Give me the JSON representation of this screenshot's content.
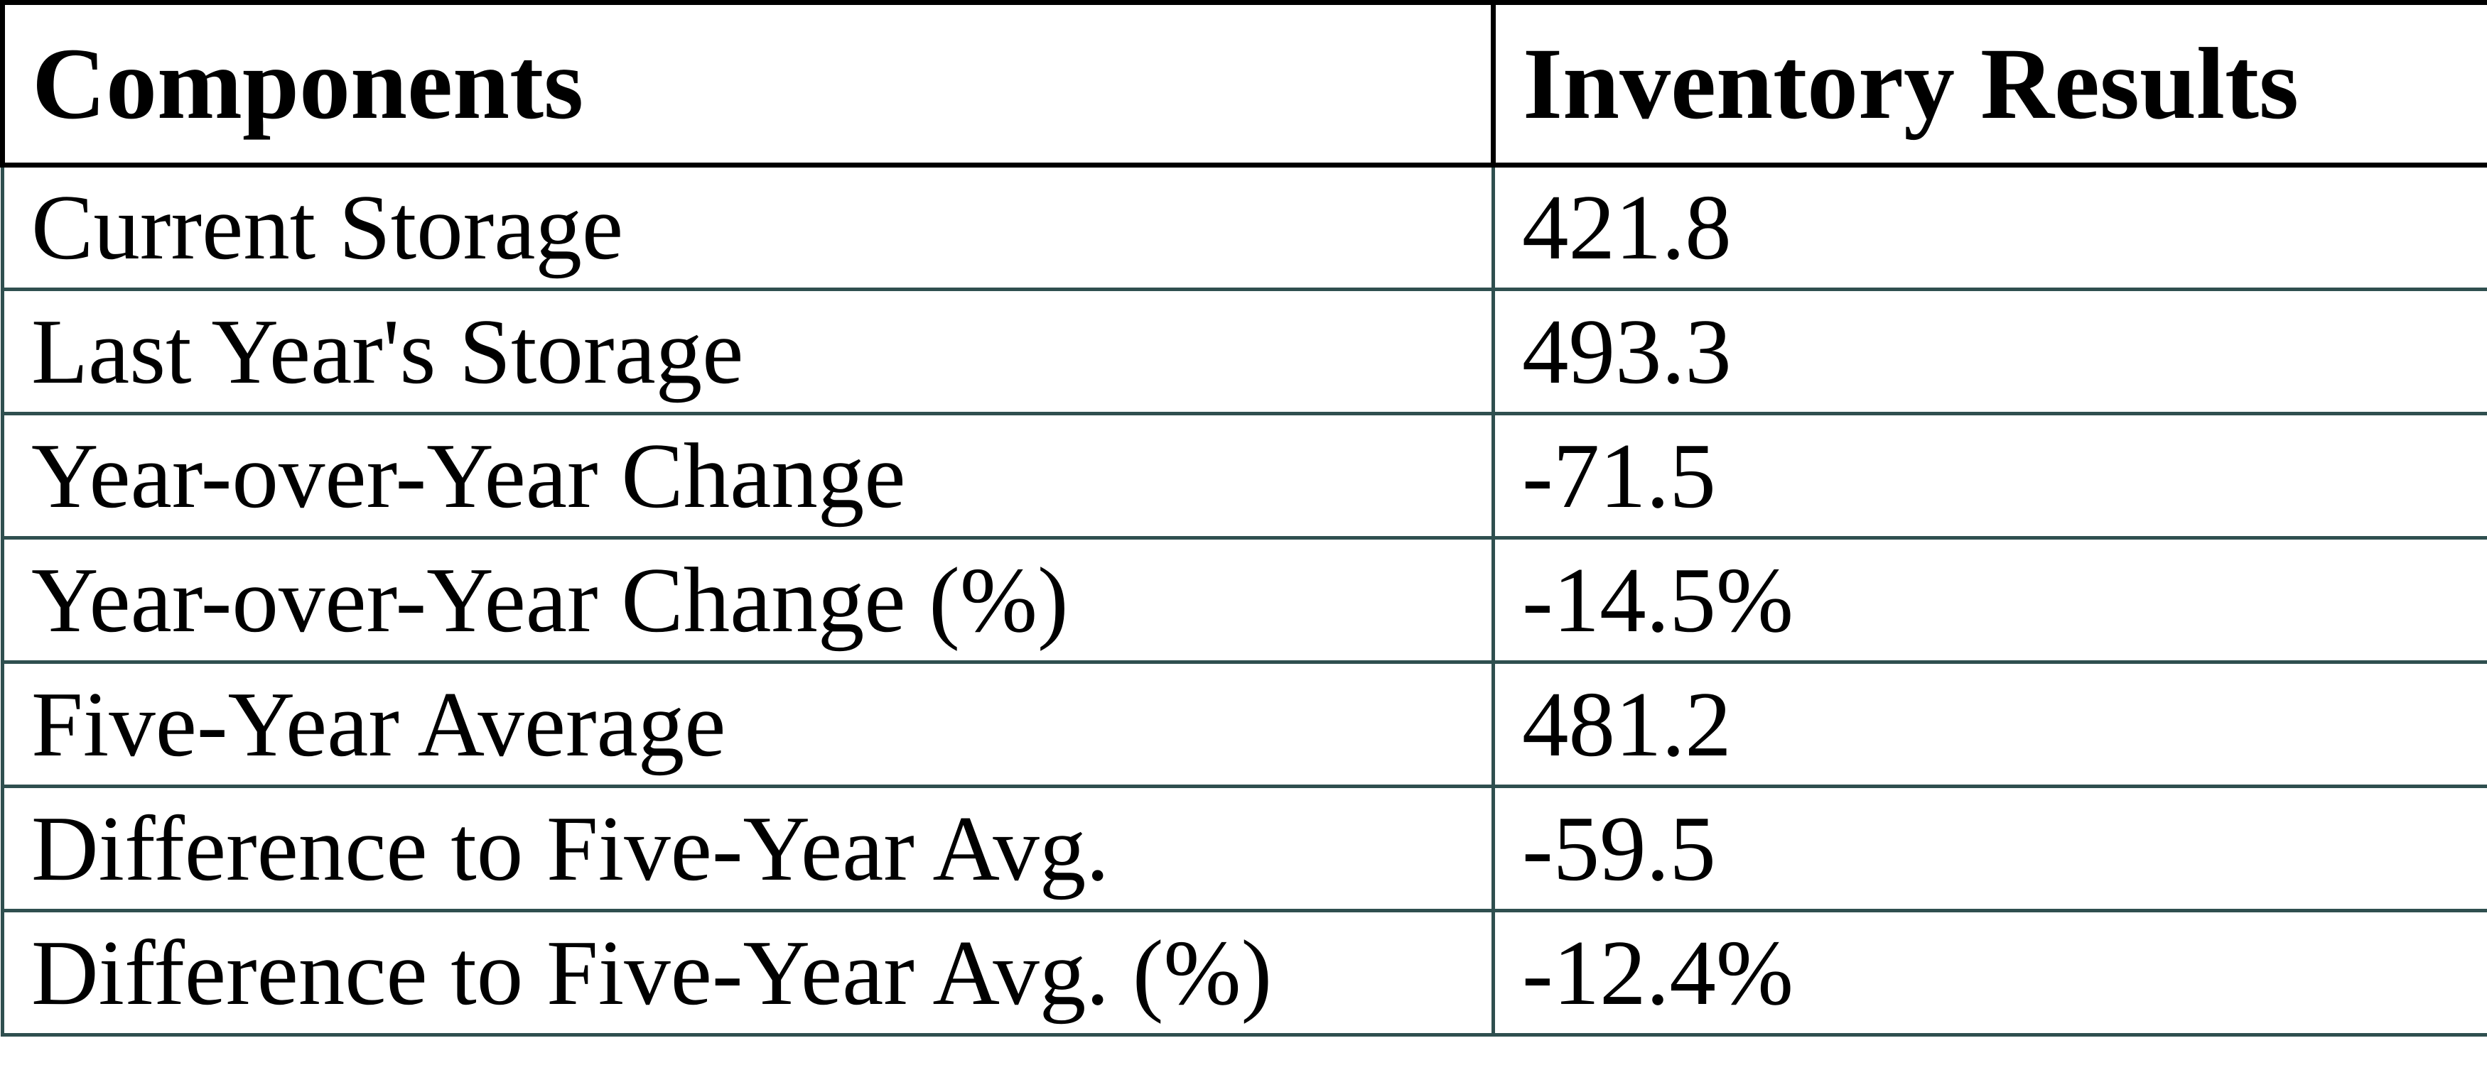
{
  "table": {
    "header": {
      "components": "Components",
      "inventory_results": "Inventory Results"
    },
    "rows": [
      {
        "label": "Current Storage",
        "value": "421.8"
      },
      {
        "label": "Last Year's Storage",
        "value": "493.3"
      },
      {
        "label": "Year-over-Year Change",
        "value": "-71.5"
      },
      {
        "label": "Year-over-Year Change (%)",
        "value": "-14.5%"
      },
      {
        "label": "Five-Year Average",
        "value": "481.2"
      },
      {
        "label": "Difference to Five-Year Avg.",
        "value": "-59.5"
      },
      {
        "label": "Difference to Five-Year Avg. (%)",
        "value": "-12.4%"
      }
    ],
    "colors": {
      "header_border": "#000000",
      "body_border": "#2f4f4f",
      "text": "#000000",
      "background": "#ffffff"
    }
  },
  "chart_data": {
    "type": "table",
    "columns": [
      "Components",
      "Inventory Results"
    ],
    "rows": [
      [
        "Current Storage",
        "421.8"
      ],
      [
        "Last Year's Storage",
        "493.3"
      ],
      [
        "Year-over-Year Change",
        "-71.5"
      ],
      [
        "Year-over-Year Change (%)",
        "-14.5%"
      ],
      [
        "Five-Year Average",
        "481.2"
      ],
      [
        "Difference to Five-Year Avg.",
        "-59.5"
      ],
      [
        "Difference to Five-Year Avg. (%)",
        "-12.4%"
      ]
    ]
  }
}
